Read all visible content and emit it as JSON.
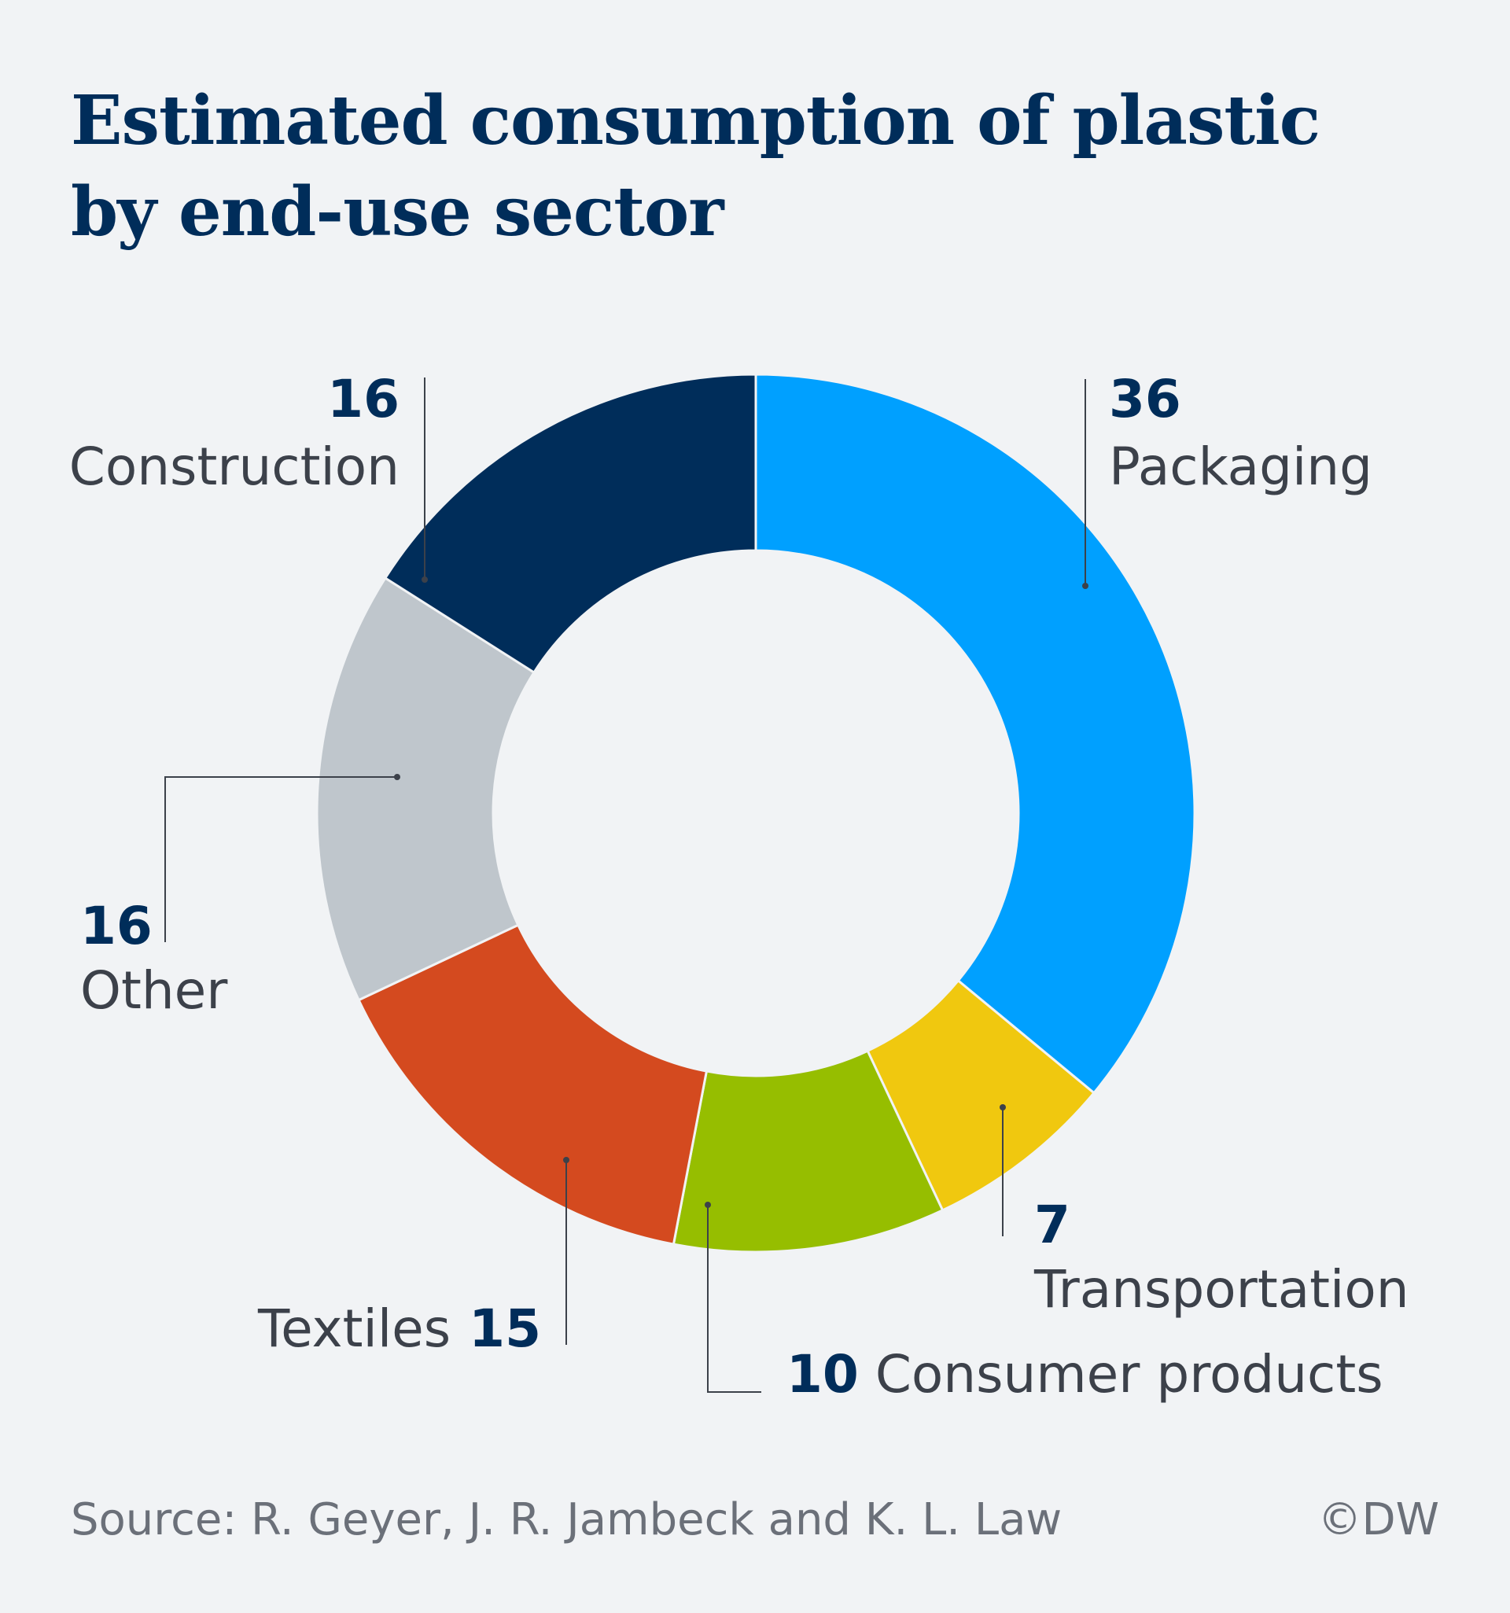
{
  "title": "Estimated consumption of plastic by end-use sector",
  "source": "Source: R. Geyer, J. R. Jambeck and K. L. Law",
  "credit": "©DW",
  "chart_data": {
    "type": "pie",
    "style": "donut",
    "title": "Estimated consumption of plastic by end-use sector",
    "slices": [
      {
        "name": "Packaging",
        "value": 36,
        "color": "#00a0ff"
      },
      {
        "name": "Transportation",
        "value": 7,
        "color": "#f0c80f"
      },
      {
        "name": "Consumer products",
        "value": 10,
        "color": "#96be00"
      },
      {
        "name": "Textiles",
        "value": 15,
        "color": "#d44a1f"
      },
      {
        "name": "Other",
        "value": 16,
        "color": "#bfc6cc"
      },
      {
        "name": "Construction",
        "value": 16,
        "color": "#002d5a"
      }
    ]
  }
}
